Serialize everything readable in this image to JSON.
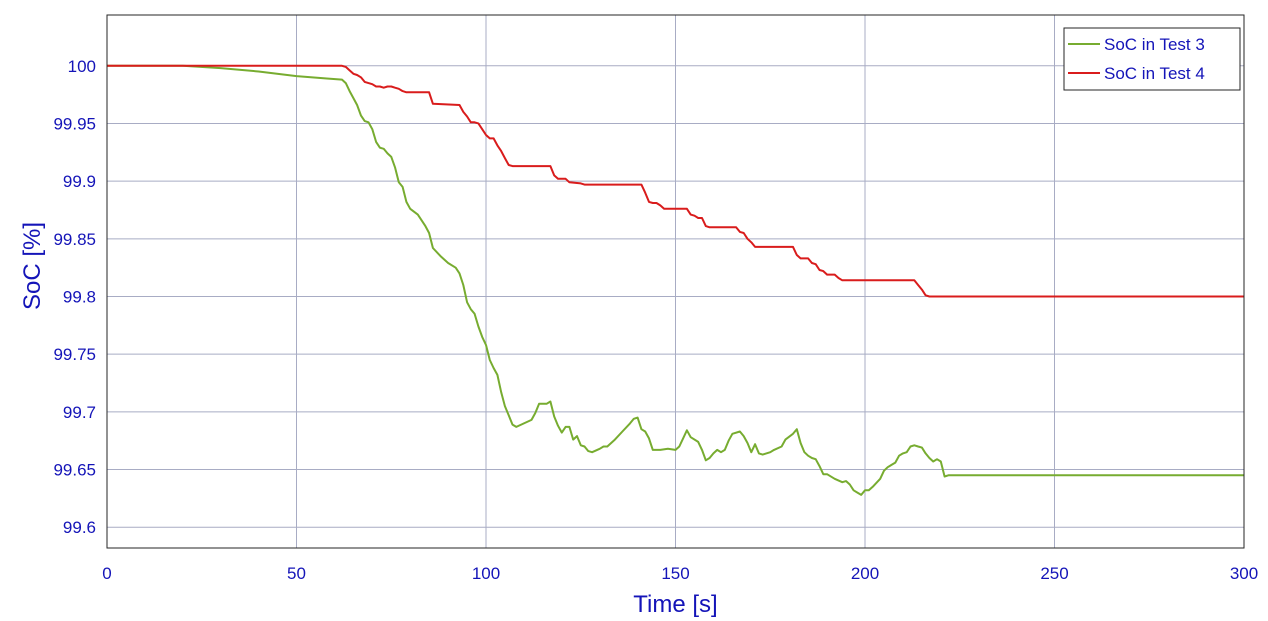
{
  "chart_data": {
    "type": "line",
    "xlabel": "Time [s]",
    "ylabel": "SoC [%]",
    "xlim": [
      0,
      300
    ],
    "ylim": [
      99.582,
      100.044
    ],
    "x_ticks": [
      0,
      50,
      100,
      150,
      200,
      250,
      300
    ],
    "x_tick_labels": [
      "0",
      "50",
      "100",
      "150",
      "200",
      "250",
      "300"
    ],
    "y_ticks": [
      99.6,
      99.65,
      99.7,
      99.75,
      99.8,
      99.85,
      99.9,
      99.95,
      100
    ],
    "y_tick_labels": [
      "99.6",
      "99.65",
      "99.7",
      "99.75",
      "99.8",
      "99.85",
      "99.9",
      "99.95",
      "100"
    ],
    "grid": true,
    "legend_position": "top-right",
    "series": [
      {
        "name": "SoC in Test 3",
        "color": "#77ac30",
        "points": [
          [
            0,
            100
          ],
          [
            20,
            100
          ],
          [
            30,
            99.998
          ],
          [
            40,
            99.995
          ],
          [
            50,
            99.991
          ],
          [
            58,
            99.989
          ],
          [
            62,
            99.988
          ],
          [
            63,
            99.985
          ],
          [
            64,
            99.978
          ],
          [
            65,
            99.972
          ],
          [
            66,
            99.966
          ],
          [
            67,
            99.957
          ],
          [
            68,
            99.952
          ],
          [
            69,
            99.951
          ],
          [
            70,
            99.945
          ],
          [
            71,
            99.934
          ],
          [
            72,
            99.929
          ],
          [
            73,
            99.928
          ],
          [
            74,
            99.924
          ],
          [
            75,
            99.921
          ],
          [
            76,
            99.912
          ],
          [
            77,
            99.899
          ],
          [
            78,
            99.895
          ],
          [
            79,
            99.882
          ],
          [
            80,
            99.876
          ],
          [
            82,
            99.871
          ],
          [
            84,
            99.861
          ],
          [
            85,
            99.855
          ],
          [
            86,
            99.842
          ],
          [
            88,
            99.835
          ],
          [
            90,
            99.829
          ],
          [
            92,
            99.825
          ],
          [
            93,
            99.82
          ],
          [
            94,
            99.81
          ],
          [
            95,
            99.795
          ],
          [
            96,
            99.789
          ],
          [
            97,
            99.785
          ],
          [
            98,
            99.774
          ],
          [
            99,
            99.765
          ],
          [
            100,
            99.758
          ],
          [
            101,
            99.745
          ],
          [
            102,
            99.738
          ],
          [
            103,
            99.732
          ],
          [
            104,
            99.717
          ],
          [
            105,
            99.705
          ],
          [
            106,
            99.697
          ],
          [
            107,
            99.689
          ],
          [
            108,
            99.687
          ],
          [
            110,
            99.69
          ],
          [
            112,
            99.693
          ],
          [
            113,
            99.699
          ],
          [
            114,
            99.707
          ],
          [
            116,
            99.707
          ],
          [
            117,
            99.709
          ],
          [
            118,
            99.696
          ],
          [
            119,
            99.688
          ],
          [
            120,
            99.682
          ],
          [
            121,
            99.687
          ],
          [
            122,
            99.687
          ],
          [
            123,
            99.676
          ],
          [
            124,
            99.679
          ],
          [
            125,
            99.671
          ],
          [
            126,
            99.67
          ],
          [
            127,
            99.666
          ],
          [
            128,
            99.665
          ],
          [
            130,
            99.668
          ],
          [
            131,
            99.67
          ],
          [
            132,
            99.67
          ],
          [
            134,
            99.676
          ],
          [
            136,
            99.683
          ],
          [
            138,
            99.69
          ],
          [
            139,
            99.694
          ],
          [
            140,
            99.695
          ],
          [
            141,
            99.685
          ],
          [
            142,
            99.683
          ],
          [
            143,
            99.677
          ],
          [
            144,
            99.667
          ],
          [
            146,
            99.667
          ],
          [
            148,
            99.668
          ],
          [
            150,
            99.667
          ],
          [
            151,
            99.67
          ],
          [
            152,
            99.677
          ],
          [
            153,
            99.684
          ],
          [
            154,
            99.678
          ],
          [
            156,
            99.674
          ],
          [
            157,
            99.667
          ],
          [
            158,
            99.658
          ],
          [
            159,
            99.66
          ],
          [
            160,
            99.664
          ],
          [
            161,
            99.667
          ],
          [
            162,
            99.665
          ],
          [
            163,
            99.667
          ],
          [
            164,
            99.675
          ],
          [
            165,
            99.681
          ],
          [
            167,
            99.683
          ],
          [
            168,
            99.679
          ],
          [
            169,
            99.673
          ],
          [
            170,
            99.665
          ],
          [
            171,
            99.672
          ],
          [
            172,
            99.664
          ],
          [
            173,
            99.663
          ],
          [
            175,
            99.665
          ],
          [
            176,
            99.667
          ],
          [
            178,
            99.67
          ],
          [
            179,
            99.676
          ],
          [
            181,
            99.681
          ],
          [
            182,
            99.685
          ],
          [
            183,
            99.673
          ],
          [
            184,
            99.665
          ],
          [
            185,
            99.662
          ],
          [
            186,
            99.66
          ],
          [
            187,
            99.659
          ],
          [
            188,
            99.653
          ],
          [
            189,
            99.646
          ],
          [
            190,
            99.646
          ],
          [
            192,
            99.642
          ],
          [
            194,
            99.639
          ],
          [
            195,
            99.64
          ],
          [
            196,
            99.637
          ],
          [
            197,
            99.632
          ],
          [
            198,
            99.63
          ],
          [
            199,
            99.628
          ],
          [
            200,
            99.632
          ],
          [
            201,
            99.632
          ],
          [
            202,
            99.635
          ],
          [
            204,
            99.642
          ],
          [
            205,
            99.649
          ],
          [
            206,
            99.652
          ],
          [
            207,
            99.654
          ],
          [
            208,
            99.656
          ],
          [
            209,
            99.662
          ],
          [
            210,
            99.664
          ],
          [
            211,
            99.665
          ],
          [
            212,
            99.67
          ],
          [
            213,
            99.671
          ],
          [
            214,
            99.67
          ],
          [
            215,
            99.669
          ],
          [
            216,
            99.664
          ],
          [
            217,
            99.66
          ],
          [
            218,
            99.657
          ],
          [
            219,
            99.659
          ],
          [
            220,
            99.657
          ],
          [
            221,
            99.644
          ],
          [
            222,
            99.645
          ],
          [
            230,
            99.645
          ],
          [
            250,
            99.645
          ],
          [
            270,
            99.645
          ],
          [
            300,
            99.645
          ]
        ]
      },
      {
        "name": "SoC in Test 4",
        "color": "#d91c1c",
        "points": [
          [
            0,
            100
          ],
          [
            60,
            100
          ],
          [
            62,
            100
          ],
          [
            63,
            99.999
          ],
          [
            64,
            99.996
          ],
          [
            65,
            99.993
          ],
          [
            66,
            99.992
          ],
          [
            67,
            99.99
          ],
          [
            68,
            99.986
          ],
          [
            69,
            99.985
          ],
          [
            70,
            99.984
          ],
          [
            71,
            99.982
          ],
          [
            72,
            99.982
          ],
          [
            73,
            99.981
          ],
          [
            74,
            99.982
          ],
          [
            75,
            99.982
          ],
          [
            76,
            99.981
          ],
          [
            77,
            99.98
          ],
          [
            78,
            99.978
          ],
          [
            79,
            99.977
          ],
          [
            85,
            99.977
          ],
          [
            86,
            99.967
          ],
          [
            93,
            99.966
          ],
          [
            94,
            99.96
          ],
          [
            95,
            99.956
          ],
          [
            96,
            99.951
          ],
          [
            97,
            99.951
          ],
          [
            98,
            99.95
          ],
          [
            99,
            99.945
          ],
          [
            100,
            99.94
          ],
          [
            101,
            99.937
          ],
          [
            102,
            99.937
          ],
          [
            103,
            99.931
          ],
          [
            104,
            99.926
          ],
          [
            105,
            99.92
          ],
          [
            106,
            99.914
          ],
          [
            107,
            99.913
          ],
          [
            117,
            99.913
          ],
          [
            118,
            99.905
          ],
          [
            119,
            99.902
          ],
          [
            121,
            99.902
          ],
          [
            122,
            99.899
          ],
          [
            125,
            99.898
          ],
          [
            126,
            99.897
          ],
          [
            133,
            99.897
          ],
          [
            141,
            99.897
          ],
          [
            142,
            99.89
          ],
          [
            143,
            99.882
          ],
          [
            144,
            99.881
          ],
          [
            145,
            99.881
          ],
          [
            146,
            99.879
          ],
          [
            147,
            99.876
          ],
          [
            153,
            99.876
          ],
          [
            154,
            99.871
          ],
          [
            155,
            99.87
          ],
          [
            156,
            99.868
          ],
          [
            157,
            99.868
          ],
          [
            158,
            99.861
          ],
          [
            159,
            99.86
          ],
          [
            166,
            99.86
          ],
          [
            167,
            99.856
          ],
          [
            168,
            99.855
          ],
          [
            169,
            99.85
          ],
          [
            170,
            99.847
          ],
          [
            171,
            99.843
          ],
          [
            181,
            99.843
          ],
          [
            182,
            99.836
          ],
          [
            183,
            99.833
          ],
          [
            185,
            99.833
          ],
          [
            186,
            99.829
          ],
          [
            187,
            99.828
          ],
          [
            188,
            99.823
          ],
          [
            189,
            99.822
          ],
          [
            190,
            99.819
          ],
          [
            192,
            99.819
          ],
          [
            193,
            99.816
          ],
          [
            194,
            99.814
          ],
          [
            207,
            99.814
          ],
          [
            213,
            99.814
          ],
          [
            214,
            99.81
          ],
          [
            215,
            99.806
          ],
          [
            216,
            99.801
          ],
          [
            217,
            99.8
          ],
          [
            225,
            99.8
          ],
          [
            250,
            99.8
          ],
          [
            300,
            99.8
          ]
        ]
      }
    ]
  }
}
